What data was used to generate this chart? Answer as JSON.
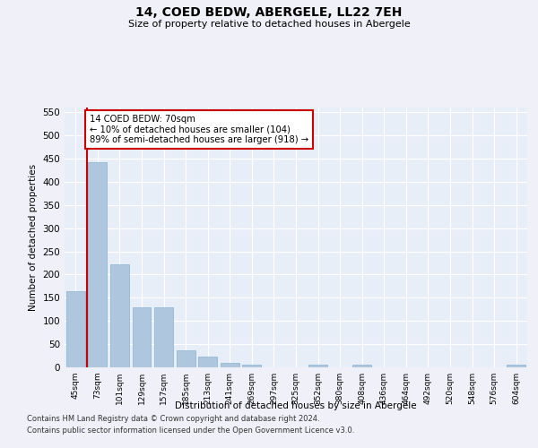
{
  "title": "14, COED BEDW, ABERGELE, LL22 7EH",
  "subtitle": "Size of property relative to detached houses in Abergele",
  "xlabel": "Distribution of detached houses by size in Abergele",
  "ylabel": "Number of detached properties",
  "categories": [
    "45sqm",
    "73sqm",
    "101sqm",
    "129sqm",
    "157sqm",
    "185sqm",
    "213sqm",
    "241sqm",
    "269sqm",
    "297sqm",
    "325sqm",
    "352sqm",
    "380sqm",
    "408sqm",
    "436sqm",
    "464sqm",
    "492sqm",
    "520sqm",
    "548sqm",
    "576sqm",
    "604sqm"
  ],
  "values": [
    165,
    443,
    222,
    130,
    130,
    37,
    24,
    10,
    6,
    0,
    0,
    5,
    0,
    5,
    0,
    0,
    0,
    0,
    0,
    0,
    5
  ],
  "bar_color": "#aec6de",
  "bar_edge_color": "#8ab0cc",
  "highlight_line_color": "#cc0000",
  "annotation_box_text": "14 COED BEDW: 70sqm\n← 10% of detached houses are smaller (104)\n89% of semi-detached houses are larger (918) →",
  "annotation_box_color": "#cc0000",
  "ylim": [
    0,
    560
  ],
  "yticks": [
    0,
    50,
    100,
    150,
    200,
    250,
    300,
    350,
    400,
    450,
    500,
    550
  ],
  "background_color": "#e8eef8",
  "grid_color": "#ffffff",
  "footer_line1": "Contains HM Land Registry data © Crown copyright and database right 2024.",
  "footer_line2": "Contains public sector information licensed under the Open Government Licence v3.0."
}
